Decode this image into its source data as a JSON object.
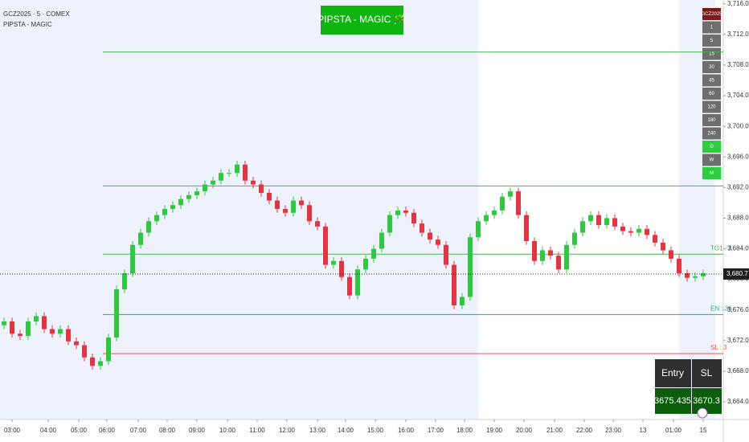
{
  "header": {
    "symbol": "GCZ2025 · 5 · COMEX",
    "indicator": "PIPSTA - MAGIC"
  },
  "button": "PIPSTA - MAGIC 🪄",
  "timeframes": [
    "GCZ2025",
    "1",
    "5",
    "15",
    "30",
    "45",
    "60",
    "120",
    "180",
    "240",
    "D",
    "W",
    "M"
  ],
  "table": {
    "headers": [
      "Entry",
      "SL"
    ],
    "values": [
      "3675.435",
      "3670.3"
    ]
  },
  "chart_data": {
    "type": "candlestick",
    "open": [
      3674.0,
      3674.5,
      3672.9,
      3672.6,
      3674.5,
      3675.2,
      3673.5,
      3672.9,
      3673.5,
      3671.9,
      3671.4,
      3669.8,
      3668.7,
      3669.3,
      3672.4,
      3678.7,
      3680.8,
      3684.5,
      3686.1,
      3687.6,
      3688.4,
      3689.2,
      3689.7,
      3690.5,
      3691.0,
      3691.5,
      3692.4,
      3692.9,
      3693.9,
      3693.9,
      3695.0,
      3692.9,
      3692.4,
      3691.3,
      3690.3,
      3689.2,
      3688.7,
      3690.3,
      3689.7,
      3687.6,
      3686.9,
      3681.9,
      3682.4,
      3680.3,
      3677.9,
      3681.3,
      3682.7,
      3684.0,
      3686.1,
      3688.4,
      3689.0,
      3688.7,
      3687.3,
      3686.1,
      3685.2,
      3684.5,
      3681.9,
      3676.6,
      3677.7,
      3685.5,
      3687.6,
      3688.4,
      3689.0,
      3690.8,
      3691.5,
      3688.4,
      3685.0,
      3682.4,
      3683.8,
      3683.1,
      3681.3,
      3684.5,
      3686.1,
      3687.6,
      3688.4,
      3687.1,
      3688.0,
      3686.9,
      3686.3,
      3686.1,
      3686.6,
      3685.8,
      3684.8,
      3683.8,
      3682.7,
      3680.8,
      3680.2,
      3680.4
    ],
    "high": [
      3675.0,
      3675.0,
      3673.4,
      3675.0,
      3675.7,
      3675.7,
      3674.0,
      3674.0,
      3674.0,
      3672.4,
      3671.9,
      3670.3,
      3669.8,
      3672.9,
      3679.2,
      3681.3,
      3685.0,
      3686.6,
      3688.1,
      3688.9,
      3689.7,
      3690.2,
      3691.0,
      3691.5,
      3692.0,
      3692.9,
      3693.4,
      3694.4,
      3694.4,
      3695.5,
      3695.5,
      3693.4,
      3692.9,
      3691.8,
      3690.8,
      3689.7,
      3690.8,
      3690.8,
      3690.2,
      3688.1,
      3687.4,
      3682.9,
      3682.9,
      3680.8,
      3681.8,
      3683.2,
      3684.5,
      3686.6,
      3688.9,
      3689.5,
      3689.5,
      3689.2,
      3687.8,
      3686.6,
      3685.7,
      3685.0,
      3682.4,
      3678.2,
      3686.0,
      3688.1,
      3688.9,
      3689.5,
      3691.3,
      3692.0,
      3692.0,
      3688.9,
      3685.5,
      3684.3,
      3684.3,
      3683.6,
      3685.0,
      3686.6,
      3688.1,
      3688.9,
      3688.9,
      3688.5,
      3688.5,
      3687.4,
      3686.8,
      3687.1,
      3687.1,
      3686.3,
      3685.3,
      3684.3,
      3683.2,
      3681.3,
      3680.9,
      3681.3
    ],
    "low": [
      3673.5,
      3672.4,
      3672.1,
      3672.1,
      3674.0,
      3673.0,
      3672.4,
      3672.4,
      3671.4,
      3670.9,
      3669.3,
      3668.2,
      3668.2,
      3668.8,
      3671.9,
      3678.2,
      3680.3,
      3684.0,
      3685.6,
      3687.1,
      3687.9,
      3688.7,
      3689.2,
      3690.0,
      3690.5,
      3691.0,
      3691.9,
      3692.4,
      3693.4,
      3693.4,
      3692.4,
      3691.9,
      3690.8,
      3689.8,
      3688.7,
      3688.2,
      3688.2,
      3689.2,
      3687.1,
      3686.4,
      3681.4,
      3681.4,
      3679.8,
      3677.4,
      3677.4,
      3680.8,
      3682.2,
      3683.5,
      3685.6,
      3687.9,
      3688.2,
      3686.8,
      3685.6,
      3684.7,
      3684.0,
      3681.4,
      3676.1,
      3676.1,
      3677.2,
      3685.0,
      3687.1,
      3687.9,
      3688.5,
      3690.3,
      3687.9,
      3684.5,
      3681.9,
      3681.9,
      3682.6,
      3680.8,
      3680.8,
      3684.0,
      3685.6,
      3687.1,
      3686.6,
      3686.6,
      3686.4,
      3685.8,
      3685.6,
      3685.6,
      3685.3,
      3684.3,
      3683.3,
      3682.2,
      3680.3,
      3679.7,
      3679.7,
      3679.9
    ],
    "close": [
      3674.5,
      3672.9,
      3672.6,
      3674.5,
      3675.2,
      3673.5,
      3672.9,
      3673.5,
      3671.9,
      3671.4,
      3669.8,
      3668.7,
      3669.3,
      3672.4,
      3678.7,
      3680.8,
      3684.5,
      3686.1,
      3687.6,
      3688.4,
      3689.2,
      3689.7,
      3690.5,
      3691.0,
      3691.5,
      3692.4,
      3692.9,
      3693.9,
      3693.9,
      3695.0,
      3692.9,
      3692.4,
      3691.3,
      3690.3,
      3689.2,
      3688.7,
      3690.3,
      3689.7,
      3687.6,
      3686.9,
      3681.9,
      3682.4,
      3680.3,
      3677.9,
      3681.3,
      3682.7,
      3684.0,
      3686.1,
      3688.4,
      3689.0,
      3688.7,
      3687.3,
      3686.1,
      3685.2,
      3684.5,
      3681.9,
      3676.6,
      3677.7,
      3685.5,
      3687.6,
      3688.4,
      3689.0,
      3690.8,
      3691.5,
      3688.4,
      3685.0,
      3682.4,
      3683.8,
      3683.1,
      3681.3,
      3684.5,
      3686.1,
      3687.6,
      3688.4,
      3687.1,
      3688.0,
      3686.9,
      3686.3,
      3686.1,
      3686.6,
      3685.8,
      3684.8,
      3683.8,
      3682.7,
      3680.8,
      3680.2,
      3680.4,
      3680.8
    ],
    "up_color": "#2fc93f",
    "down_color": "#e5333f",
    "xlim": [
      -0.5,
      89.5
    ],
    "xticks": [
      {
        "value": 1.0,
        "label": "03:00"
      },
      {
        "value": 5.5,
        "label": "04:00"
      },
      {
        "value": 9.3,
        "label": "05:00"
      },
      {
        "value": 12.8,
        "label": "06:00"
      },
      {
        "value": 16.7,
        "label": "07:00"
      },
      {
        "value": 20.3,
        "label": "08:00"
      },
      {
        "value": 24.0,
        "label": "09:00"
      },
      {
        "value": 27.8,
        "label": "10:00"
      },
      {
        "value": 31.5,
        "label": "11:00"
      },
      {
        "value": 35.2,
        "label": "12:00"
      },
      {
        "value": 39.0,
        "label": "13:00"
      },
      {
        "value": 42.5,
        "label": "14:00"
      },
      {
        "value": 46.2,
        "label": "15:00"
      },
      {
        "value": 50.0,
        "label": "16:00"
      },
      {
        "value": 53.7,
        "label": "17:00"
      },
      {
        "value": 57.3,
        "label": "18:00"
      },
      {
        "value": 61.0,
        "label": "19:00"
      },
      {
        "value": 64.7,
        "label": "20:00"
      },
      {
        "value": 68.5,
        "label": "21:00"
      },
      {
        "value": 72.2,
        "label": "22:00"
      },
      {
        "value": 75.8,
        "label": "23:00"
      },
      {
        "value": 79.5,
        "label": "13"
      },
      {
        "value": 83.3,
        "label": "01:00"
      },
      {
        "value": 87.0,
        "label": "15"
      }
    ],
    "ylim": [
      3661.9,
      3716.5
    ],
    "yticks": [
      {
        "value": 3716,
        "label": "3,716.0"
      },
      {
        "value": 3712,
        "label": "3,712.0"
      },
      {
        "value": 3708,
        "label": "3,708.0"
      },
      {
        "value": 3704,
        "label": "3,704.0"
      },
      {
        "value": 3700,
        "label": "3,700.0"
      },
      {
        "value": 3696,
        "label": "3,696.0"
      },
      {
        "value": 3692,
        "label": "3,692.0"
      },
      {
        "value": 3688,
        "label": "3,688.0"
      },
      {
        "value": 3684,
        "label": "3,684.0"
      },
      {
        "value": 3680,
        "label": "3,680.0"
      },
      {
        "value": 3676,
        "label": "3,676.0"
      },
      {
        "value": 3672,
        "label": "3,672.0"
      },
      {
        "value": 3668,
        "label": "3,668.0"
      },
      {
        "value": 3664,
        "label": "3,664.0"
      }
    ],
    "levels": [
      {
        "value": 3709.7,
        "color": "#4caf50"
      },
      {
        "value": 3692.2,
        "color": "#4caf50"
      },
      {
        "value": 3683.3,
        "color": "#4caf50",
        "label": "TG1 : 3"
      },
      {
        "value": 3675.4,
        "color": "#26a69a",
        "label": "EN : 36"
      },
      {
        "value": 3670.3,
        "color": "#ef5350",
        "label": "SL : 3"
      }
    ],
    "last_price": {
      "value": 3680.7,
      "label": "3,680.7"
    }
  }
}
